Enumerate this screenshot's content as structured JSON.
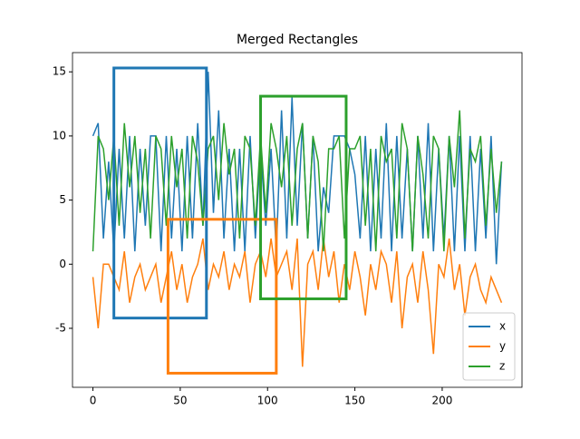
{
  "chart_data": {
    "type": "line",
    "title": "Merged Rectangles",
    "x": [
      0,
      3,
      6,
      9,
      12,
      15,
      18,
      21,
      24,
      27,
      30,
      33,
      36,
      39,
      42,
      45,
      48,
      51,
      54,
      57,
      60,
      63,
      66,
      69,
      72,
      75,
      78,
      81,
      84,
      87,
      90,
      93,
      96,
      99,
      102,
      105,
      108,
      111,
      114,
      117,
      120,
      123,
      126,
      129,
      132,
      135,
      138,
      141,
      144,
      147,
      150,
      153,
      156,
      159,
      162,
      165,
      168,
      171,
      174,
      177,
      180,
      183,
      186,
      189,
      192,
      195,
      198,
      201,
      204,
      207,
      210,
      213,
      216,
      219,
      222,
      225,
      228,
      231,
      234
    ],
    "series": [
      {
        "name": "x",
        "color": "#1f77b4",
        "values": [
          10,
          11,
          2,
          8,
          1,
          9,
          2,
          10,
          1,
          9,
          3,
          10,
          10,
          1,
          10,
          2,
          9,
          1,
          10,
          2,
          11,
          3,
          15,
          4,
          12,
          2,
          9,
          1,
          9,
          1,
          10,
          2,
          9,
          3,
          9,
          1,
          12,
          2,
          13,
          3,
          11,
          2,
          10,
          1,
          6,
          4,
          10,
          10,
          10,
          9,
          7,
          2,
          10,
          1,
          9,
          2,
          11,
          1,
          10,
          2,
          9,
          1,
          10,
          2,
          11,
          1,
          9,
          2,
          10,
          1,
          10,
          1,
          10,
          1,
          9,
          2,
          10,
          0,
          8
        ]
      },
      {
        "name": "y",
        "color": "#ff7f0e",
        "values": [
          -1,
          -5,
          0,
          0,
          -1,
          -2,
          1,
          -3,
          -1,
          0,
          -2,
          -1,
          0,
          -3,
          -1,
          1,
          -2,
          0,
          -3,
          -1,
          0,
          2,
          -2,
          0,
          -1,
          1,
          -2,
          0,
          -1,
          1,
          -3,
          0,
          1,
          -1,
          2,
          -1,
          0,
          1,
          -2,
          2,
          -8,
          0,
          1,
          -2,
          2,
          -1,
          1,
          -3,
          0,
          -2,
          1,
          -1,
          -4,
          0,
          -2,
          1,
          0,
          -3,
          1,
          -5,
          -1,
          0,
          -3,
          1,
          -2,
          -7,
          0,
          -1,
          2,
          -2,
          0,
          -4,
          -1,
          0,
          -2,
          -3,
          -1,
          -2,
          -3
        ]
      },
      {
        "name": "z",
        "color": "#2ca02c",
        "values": [
          1,
          10,
          9,
          5,
          10,
          3,
          11,
          6,
          10,
          4,
          9,
          2,
          10,
          9,
          3,
          10,
          6,
          9,
          2,
          10,
          8,
          3,
          9,
          10,
          5,
          11,
          7,
          9,
          2,
          10,
          9,
          3,
          10,
          4,
          11,
          9,
          6,
          10,
          3,
          9,
          11,
          2,
          10,
          8,
          1,
          9,
          9,
          10,
          2,
          9,
          9,
          10,
          3,
          9,
          1,
          10,
          8,
          9,
          2,
          11,
          9,
          1,
          10,
          7,
          2,
          10,
          9,
          1,
          10,
          6,
          12,
          2,
          9,
          8,
          10,
          3,
          9,
          4,
          8
        ]
      }
    ],
    "rectangles": [
      {
        "color": "#1f77b4",
        "x": [
          12,
          65
        ],
        "y": [
          -4.2,
          15.3
        ]
      },
      {
        "color": "#ff7f0e",
        "x": [
          43,
          105
        ],
        "y": [
          -8.5,
          3.5
        ]
      },
      {
        "color": "#2ca02c",
        "x": [
          96,
          145
        ],
        "y": [
          -2.7,
          13.1
        ]
      }
    ],
    "xlim": [
      -11.7,
      245.7
    ],
    "ylim": [
      -9.6,
      16.5
    ],
    "xticks": [
      0,
      50,
      100,
      150,
      200
    ],
    "yticks": [
      -5,
      0,
      5,
      10,
      15
    ],
    "legend": "lower right"
  }
}
